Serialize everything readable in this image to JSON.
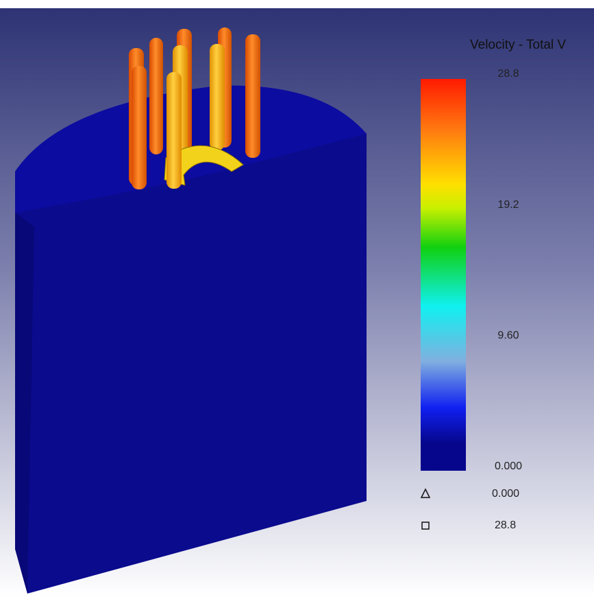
{
  "legend": {
    "title": "Velocity - Total V",
    "range": [
      0,
      28.8
    ],
    "ticks": [
      {
        "value": 28.8,
        "label": "28.8"
      },
      {
        "value": 19.2,
        "label": "19.2"
      },
      {
        "value": 9.6,
        "label": "9.60"
      },
      {
        "value": 0,
        "label": "0.000"
      }
    ],
    "min": {
      "value": 0,
      "label": "0.000"
    },
    "max": {
      "value": 28.8,
      "label": "28.8"
    }
  }
}
